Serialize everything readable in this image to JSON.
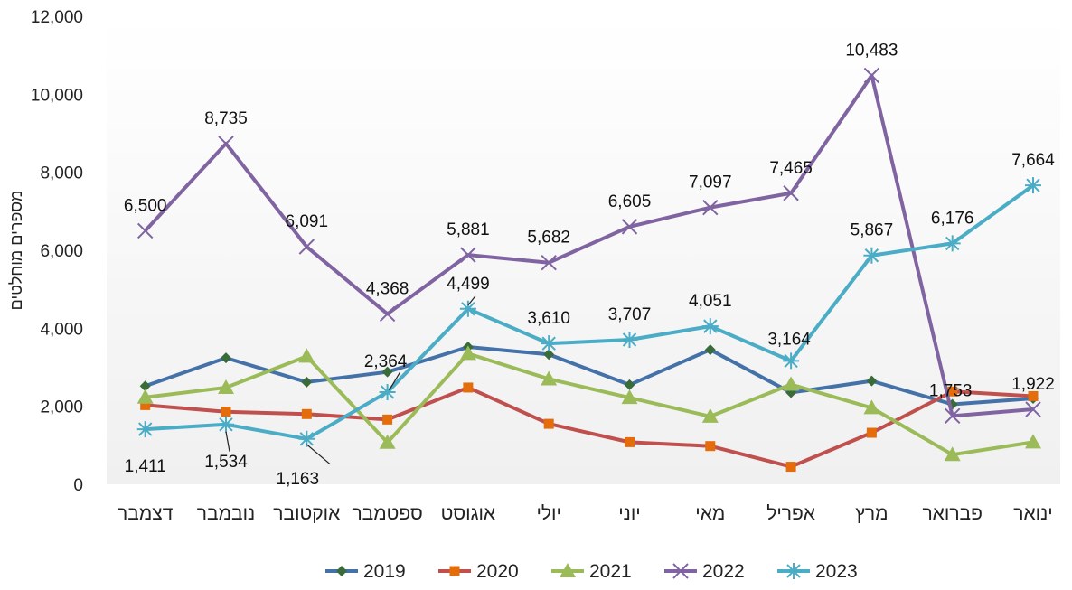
{
  "chart_data": {
    "type": "line",
    "title": "",
    "ylabel": "מספרים מוחלטים",
    "xlabel": "",
    "ylim": [
      0,
      12000
    ],
    "yticks": [
      0,
      2000,
      4000,
      6000,
      8000,
      10000,
      12000
    ],
    "ytick_labels": [
      "0",
      "2,000",
      "4,000",
      "6,000",
      "8,000",
      "10,000",
      "12,000"
    ],
    "categories": [
      "ינואר",
      "פברואר",
      "מרץ",
      "אפריל",
      "מאי",
      "יוני",
      "יולי",
      "אוגוסט",
      "ספטמבר",
      "אוקטובר",
      "נובמבר",
      "דצמבר"
    ],
    "x_direction": "right-to-left",
    "grid": false,
    "legend_position": "bottom",
    "series": [
      {
        "name": "2019",
        "color": "#4472a8",
        "marker": "diamond",
        "marker_color": "#3a6b3a",
        "values": [
          2200,
          2050,
          2650,
          2350,
          3450,
          2550,
          3330,
          3520,
          2880,
          2620,
          3240,
          2520
        ]
      },
      {
        "name": "2020",
        "color": "#c0504d",
        "marker": "square",
        "marker_color": "#e46c0a",
        "values": [
          2260,
          2380,
          1320,
          450,
          980,
          1080,
          1550,
          2480,
          1660,
          1800,
          1860,
          2030
        ]
      },
      {
        "name": "2021",
        "color": "#9bbb59",
        "marker": "triangle",
        "marker_color": "#9bbb59",
        "values": [
          1080,
          760,
          1960,
          2560,
          1740,
          2220,
          2700,
          3350,
          1070,
          3280,
          2480,
          2230
        ]
      },
      {
        "name": "2022",
        "color": "#8064a2",
        "marker": "x",
        "marker_color": "#8064a2",
        "values": [
          1922,
          1753,
          10483,
          7465,
          7097,
          6605,
          5682,
          5881,
          4368,
          6091,
          8735,
          6500
        ],
        "labels": [
          "1,922",
          "1,753",
          "10,483",
          "7,465",
          "7,097",
          "6,605",
          "5,682",
          "5,881",
          "4,368",
          "6,091",
          "8,735",
          "6,500"
        ]
      },
      {
        "name": "2023",
        "color": "#4bacc6",
        "marker": "star",
        "marker_color": "#4bacc6",
        "values": [
          7664,
          6176,
          5867,
          3164,
          4051,
          3707,
          3610,
          4499,
          2364,
          1163,
          1534,
          1411
        ],
        "labels": [
          "7,664",
          "6,176",
          "5,867",
          "3,164",
          "4,051",
          "3,707",
          "3,610",
          "4,499",
          "2,364",
          "1,163",
          "1,534",
          "1,411"
        ]
      }
    ]
  }
}
